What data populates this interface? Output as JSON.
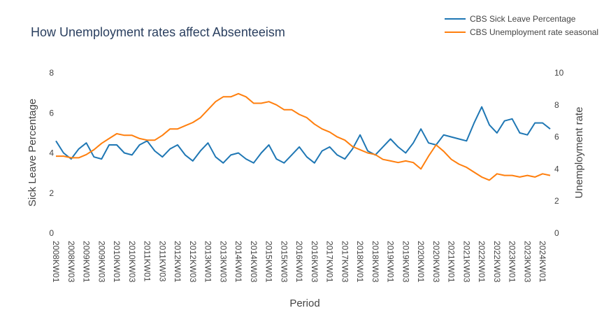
{
  "chart_data": {
    "type": "line",
    "title": "How Unemployment rates affect Absenteeism",
    "xlabel": "Period",
    "ylabel": "Sick Leave Percentage",
    "y2label": "Unemployment rate",
    "categories": [
      "2008KW01",
      null,
      "2008KW03",
      null,
      "2009KW01",
      null,
      "2009KW03",
      null,
      "2010KW01",
      null,
      "2010KW03",
      null,
      "2011KW01",
      null,
      "2011KW03",
      null,
      "2012KW01",
      null,
      "2012KW03",
      null,
      "2013KW01",
      null,
      "2013KW03",
      null,
      "2014KW01",
      null,
      "2014KW03",
      null,
      "2015KW01",
      null,
      "2015KW03",
      null,
      "2016KW01",
      null,
      "2016KW03",
      null,
      "2017KW01",
      null,
      "2017KW03",
      null,
      "2018KW01",
      null,
      "2018KW03",
      null,
      "2019KW01",
      null,
      "2019KW03",
      null,
      "2020KW01",
      null,
      "2020KW03",
      null,
      "2021KW01",
      null,
      "2021KW03",
      null,
      "2022KW01",
      null,
      "2022KW03",
      null,
      "2023KW01",
      null,
      "2023KW03",
      null,
      "2024KW01",
      null
    ],
    "series": [
      {
        "name": "CBS Sick Leave Percentage",
        "color": "#1f77b4",
        "axis": "y",
        "values": [
          4.6,
          4.0,
          3.7,
          4.2,
          4.5,
          3.8,
          3.7,
          4.4,
          4.4,
          4.0,
          3.9,
          4.4,
          4.6,
          4.1,
          3.8,
          4.2,
          4.4,
          3.9,
          3.6,
          4.1,
          4.5,
          3.8,
          3.5,
          3.9,
          4.0,
          3.7,
          3.5,
          4.0,
          4.4,
          3.7,
          3.5,
          3.9,
          4.3,
          3.8,
          3.5,
          4.1,
          4.3,
          3.9,
          3.7,
          4.2,
          4.9,
          4.1,
          3.9,
          4.3,
          4.7,
          4.3,
          4.0,
          4.5,
          5.2,
          4.5,
          4.4,
          4.9,
          4.8,
          4.7,
          4.6,
          5.5,
          6.3,
          5.4,
          5.0,
          5.6,
          5.7,
          5.0,
          4.9,
          5.5,
          5.5,
          5.2
        ]
      },
      {
        "name": "CBS Unemployment rate seasonal",
        "color": "#ff7f0e",
        "axis": "y2",
        "values": [
          4.8,
          4.8,
          4.7,
          4.7,
          4.9,
          5.2,
          5.6,
          5.9,
          6.2,
          6.1,
          6.1,
          5.9,
          5.8,
          5.8,
          6.1,
          6.5,
          6.5,
          6.7,
          6.9,
          7.2,
          7.7,
          8.2,
          8.5,
          8.5,
          8.7,
          8.5,
          8.1,
          8.1,
          8.2,
          8.0,
          7.7,
          7.7,
          7.4,
          7.2,
          6.8,
          6.5,
          6.3,
          6.0,
          5.8,
          5.4,
          5.2,
          5.0,
          4.9,
          4.6,
          4.5,
          4.4,
          4.5,
          4.4,
          4.0,
          4.8,
          5.5,
          5.1,
          4.6,
          4.3,
          4.1,
          3.8,
          3.5,
          3.3,
          3.7,
          3.6,
          3.6,
          3.5,
          3.6,
          3.5,
          3.7,
          3.6
        ]
      }
    ],
    "ylim": [
      0,
      8
    ],
    "yticks": [
      0,
      2,
      4,
      6,
      8
    ],
    "y2lim": [
      0,
      10
    ],
    "y2ticks": [
      0,
      2,
      4,
      6,
      8,
      10
    ],
    "grid": false,
    "legend": "top-right"
  }
}
